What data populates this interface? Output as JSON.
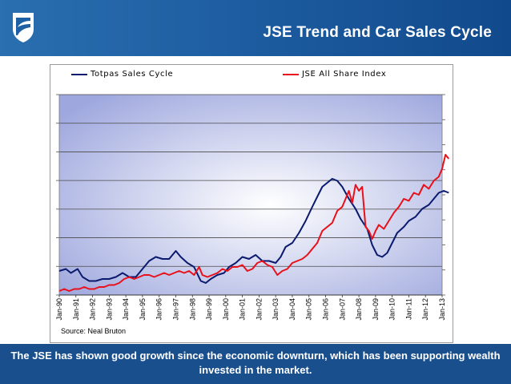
{
  "slide": {
    "title": "JSE Trend and Car Sales Cycle",
    "source": "Source: Neal Bruton",
    "caption": "The JSE has shown good growth since the economic downturn, which has been supporting wealth invested in the market."
  },
  "colors": {
    "header_blue": "#1f5fa3",
    "caption_blue": "#1a4f8e",
    "series_navy": "#0a1a6e",
    "series_red": "#e8101a"
  },
  "icons": {
    "logo": "shield-logo-icon"
  },
  "chart_data": {
    "type": "line",
    "title": "",
    "xlabel": "",
    "ylabel": "",
    "grid": true,
    "legend_position": "top",
    "categories": [
      "Jan-90",
      "Jan-91",
      "Jan-92",
      "Jan-93",
      "Jan-94",
      "Jan-95",
      "Jan-96",
      "Jan-97",
      "Jan-98",
      "Jan-99",
      "Jan-00",
      "Jan-01",
      "Jan-02",
      "Jan-03",
      "Jan-04",
      "Jan-05",
      "Jan-06",
      "Jan-07",
      "Jan-08",
      "Jan-09",
      "Jan-10",
      "Jan-11",
      "Jan-12",
      "Jan-13"
    ],
    "x_start_year": 1990,
    "ylim": [
      0,
      100
    ],
    "series": [
      {
        "name": "Totpas Sales Cycle",
        "color": "#0a1a6e",
        "points": [
          [
            1990.0,
            12
          ],
          [
            1990.4,
            13
          ],
          [
            1990.7,
            11
          ],
          [
            1991.1,
            13
          ],
          [
            1991.4,
            9
          ],
          [
            1991.8,
            7
          ],
          [
            1992.2,
            7
          ],
          [
            1992.6,
            8
          ],
          [
            1993.0,
            8
          ],
          [
            1993.4,
            9
          ],
          [
            1993.8,
            11
          ],
          [
            1994.2,
            9
          ],
          [
            1994.6,
            9
          ],
          [
            1995.0,
            13
          ],
          [
            1995.4,
            17
          ],
          [
            1995.8,
            19
          ],
          [
            1996.2,
            18
          ],
          [
            1996.6,
            18
          ],
          [
            1997.0,
            22
          ],
          [
            1997.3,
            19
          ],
          [
            1997.7,
            16
          ],
          [
            1998.1,
            14
          ],
          [
            1998.5,
            7
          ],
          [
            1998.8,
            6
          ],
          [
            1999.1,
            8
          ],
          [
            1999.5,
            10
          ],
          [
            1999.9,
            11
          ],
          [
            2000.2,
            14
          ],
          [
            2000.6,
            16
          ],
          [
            2001.0,
            19
          ],
          [
            2001.4,
            18
          ],
          [
            2001.8,
            20
          ],
          [
            2002.2,
            17
          ],
          [
            2002.6,
            17
          ],
          [
            2003.0,
            16
          ],
          [
            2003.3,
            19
          ],
          [
            2003.6,
            24
          ],
          [
            2004.0,
            26
          ],
          [
            2004.4,
            31
          ],
          [
            2004.8,
            37
          ],
          [
            2005.2,
            44
          ],
          [
            2005.5,
            49
          ],
          [
            2005.8,
            54
          ],
          [
            2006.1,
            56
          ],
          [
            2006.4,
            58
          ],
          [
            2006.7,
            57
          ],
          [
            2007.0,
            54
          ],
          [
            2007.4,
            48
          ],
          [
            2007.8,
            43
          ],
          [
            2008.1,
            38
          ],
          [
            2008.5,
            33
          ],
          [
            2008.8,
            25
          ],
          [
            2009.1,
            20
          ],
          [
            2009.4,
            19
          ],
          [
            2009.7,
            21
          ],
          [
            2010.0,
            26
          ],
          [
            2010.3,
            31
          ],
          [
            2010.7,
            34
          ],
          [
            2011.0,
            37
          ],
          [
            2011.4,
            39
          ],
          [
            2011.8,
            43
          ],
          [
            2012.2,
            45
          ],
          [
            2012.5,
            48
          ],
          [
            2012.8,
            51
          ],
          [
            2013.1,
            52
          ],
          [
            2013.4,
            51
          ]
        ]
      },
      {
        "name": "JSE All Share Index",
        "color": "#e8101a",
        "points": [
          [
            1990.0,
            2
          ],
          [
            1990.3,
            3
          ],
          [
            1990.6,
            2
          ],
          [
            1990.9,
            3
          ],
          [
            1991.2,
            3
          ],
          [
            1991.5,
            4
          ],
          [
            1991.8,
            3
          ],
          [
            1992.1,
            3
          ],
          [
            1992.4,
            4
          ],
          [
            1992.7,
            4
          ],
          [
            1993.0,
            5
          ],
          [
            1993.3,
            5
          ],
          [
            1993.6,
            6
          ],
          [
            1993.9,
            8
          ],
          [
            1994.2,
            9
          ],
          [
            1994.5,
            8
          ],
          [
            1994.8,
            9
          ],
          [
            1995.1,
            10
          ],
          [
            1995.4,
            10
          ],
          [
            1995.7,
            9
          ],
          [
            1996.0,
            10
          ],
          [
            1996.3,
            11
          ],
          [
            1996.6,
            10
          ],
          [
            1996.9,
            11
          ],
          [
            1997.2,
            12
          ],
          [
            1997.5,
            11
          ],
          [
            1997.8,
            12
          ],
          [
            1998.1,
            10
          ],
          [
            1998.4,
            14
          ],
          [
            1998.6,
            10
          ],
          [
            1998.9,
            9
          ],
          [
            1999.2,
            10
          ],
          [
            1999.5,
            11
          ],
          [
            1999.8,
            13
          ],
          [
            2000.1,
            12
          ],
          [
            2000.4,
            14
          ],
          [
            2000.7,
            14
          ],
          [
            2001.0,
            15
          ],
          [
            2001.3,
            12
          ],
          [
            2001.6,
            13
          ],
          [
            2001.9,
            16
          ],
          [
            2002.2,
            17
          ],
          [
            2002.5,
            15
          ],
          [
            2002.8,
            14
          ],
          [
            2003.1,
            10
          ],
          [
            2003.4,
            12
          ],
          [
            2003.7,
            13
          ],
          [
            2004.0,
            16
          ],
          [
            2004.3,
            17
          ],
          [
            2004.6,
            18
          ],
          [
            2004.9,
            20
          ],
          [
            2005.2,
            23
          ],
          [
            2005.5,
            26
          ],
          [
            2005.8,
            32
          ],
          [
            2006.1,
            34
          ],
          [
            2006.4,
            36
          ],
          [
            2006.7,
            42
          ],
          [
            2007.0,
            44
          ],
          [
            2007.2,
            48
          ],
          [
            2007.4,
            52
          ],
          [
            2007.6,
            46
          ],
          [
            2007.8,
            55
          ],
          [
            2008.0,
            52
          ],
          [
            2008.2,
            54
          ],
          [
            2008.4,
            34
          ],
          [
            2008.6,
            32
          ],
          [
            2008.8,
            28
          ],
          [
            2009.0,
            32
          ],
          [
            2009.2,
            35
          ],
          [
            2009.5,
            33
          ],
          [
            2009.8,
            37
          ],
          [
            2010.1,
            41
          ],
          [
            2010.4,
            44
          ],
          [
            2010.7,
            48
          ],
          [
            2011.0,
            47
          ],
          [
            2011.3,
            51
          ],
          [
            2011.6,
            50
          ],
          [
            2011.9,
            55
          ],
          [
            2012.2,
            53
          ],
          [
            2012.5,
            57
          ],
          [
            2012.8,
            59
          ],
          [
            2013.0,
            63
          ],
          [
            2013.2,
            70
          ],
          [
            2013.4,
            68
          ]
        ]
      }
    ]
  }
}
